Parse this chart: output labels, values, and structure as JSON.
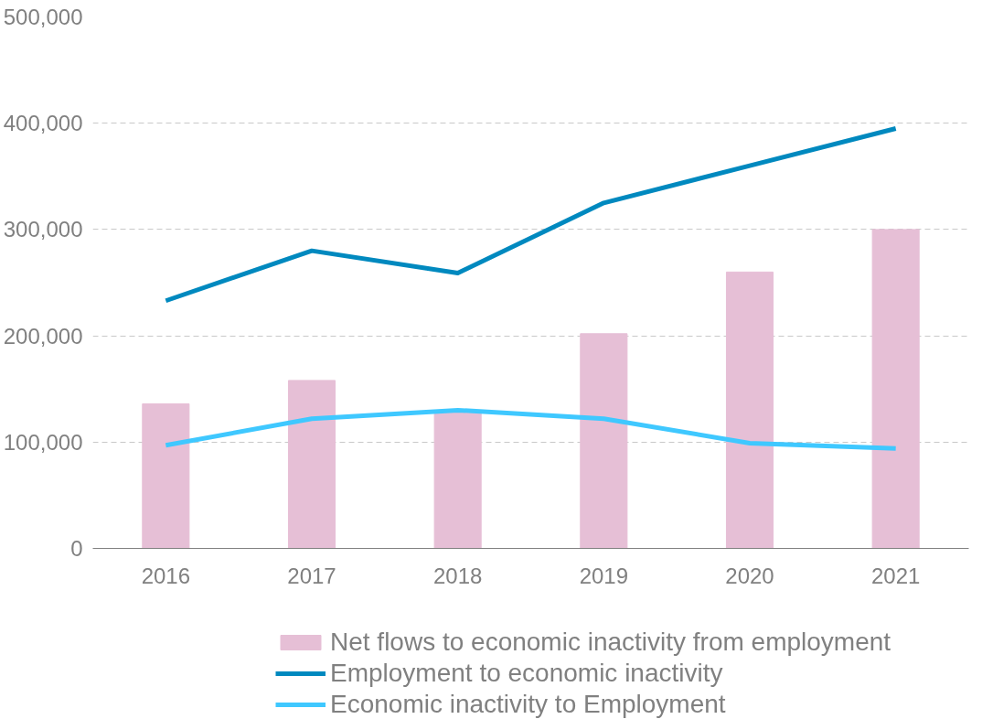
{
  "chart_data": {
    "type": "bar",
    "categories": [
      "2016",
      "2017",
      "2018",
      "2019",
      "2020",
      "2021"
    ],
    "series": [
      {
        "name": "Net flows to economic inactivity from employment",
        "color": "#e6bfd6",
        "values": [
          136000,
          158000,
          129000,
          202000,
          260000,
          300000
        ]
      },
      {
        "name": "Employment to economic inactivity",
        "type": "line",
        "color": "#0089bf",
        "values": [
          233000,
          280000,
          259000,
          325000,
          360000,
          395000
        ]
      },
      {
        "name": "Economic inactivity to Employment",
        "type": "line",
        "color": "#3fc8ff",
        "values": [
          97000,
          122000,
          130000,
          122000,
          99000,
          94000
        ]
      }
    ],
    "ylim": [
      0,
      500000
    ],
    "yticks": [
      {
        "value": 0,
        "label": "0"
      },
      {
        "value": 100000,
        "label": "100,000"
      },
      {
        "value": 200000,
        "label": "200,000"
      },
      {
        "value": 300000,
        "label": "300,000"
      },
      {
        "value": 400000,
        "label": "400,000"
      },
      {
        "value": 500000,
        "label": "500,000"
      }
    ],
    "grid": "y",
    "legend": "bottom",
    "marker": "none",
    "line_style": "solid"
  }
}
